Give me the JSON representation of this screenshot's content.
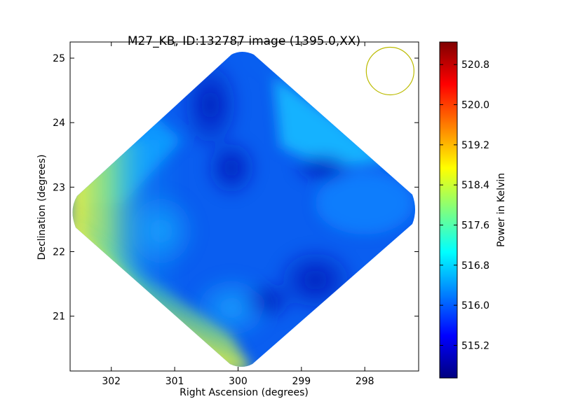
{
  "chart_data": {
    "type": "heatmap",
    "title": "M27_KB, ID:132787 image (1395.0,XX)",
    "xlabel": "Right Ascension (degrees)",
    "ylabel": "Declination (degrees)",
    "x_ticks": [
      302,
      301,
      300,
      299,
      298
    ],
    "y_ticks": [
      21,
      22,
      23,
      24,
      25
    ],
    "xlim": [
      302.65,
      297.15
    ],
    "ylim": [
      20.15,
      25.25
    ],
    "colorbar": {
      "label": "Power in Kelvin",
      "min": 514.55,
      "max": 521.25,
      "ticks": [
        "515.2",
        "516.0",
        "516.8",
        "517.6",
        "518.4",
        "519.2",
        "520.0",
        "520.8"
      ],
      "colormap": [
        "#00007f",
        "#0000ff",
        "#007fff",
        "#00ffff",
        "#7fff7f",
        "#ffff00",
        "#ff7f00",
        "#ff0000",
        "#7f0000"
      ]
    },
    "beam": {
      "ra": 297.6,
      "dec": 24.8,
      "color": "#bbbb00"
    },
    "colors": {
      "deep_blue": "#1030e0",
      "mid_blue": "#0a5ef0",
      "light_blue": "#12a6ff",
      "cyan": "#19c8ff",
      "green": "#62e89a",
      "yellow_green": "#b6f062",
      "yellow": "#f2f03a"
    }
  }
}
